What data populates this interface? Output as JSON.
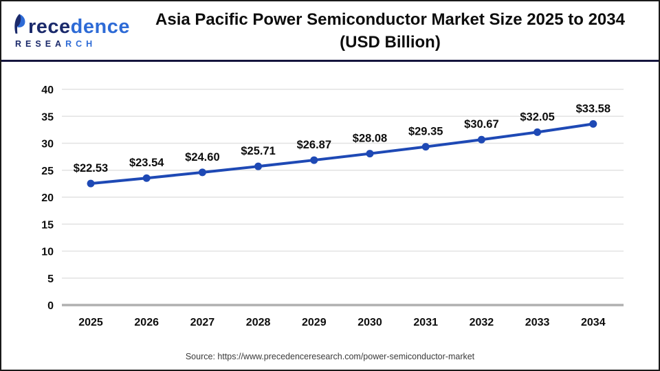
{
  "header": {
    "title_line1": "Asia Pacific Power Semiconductor Market Size 2025 to 2034",
    "title_line2": "(USD Billion)"
  },
  "logo": {
    "word_part1": "rece",
    "word_part2": "dence",
    "sub_part1": "RESEA",
    "sub_part2": "RCH",
    "navy": "#1b2a6b",
    "blue": "#2e6bd6"
  },
  "chart_data": {
    "type": "line",
    "title": "Asia Pacific Power Semiconductor Market Size 2025 to 2034 (USD Billion)",
    "categories": [
      "2025",
      "2026",
      "2027",
      "2028",
      "2029",
      "2030",
      "2031",
      "2032",
      "2033",
      "2034"
    ],
    "values": [
      22.53,
      23.54,
      24.6,
      25.71,
      26.87,
      28.08,
      29.35,
      30.67,
      32.05,
      33.58
    ],
    "value_prefix": "$",
    "value_decimals": 2,
    "yticks": [
      0,
      5,
      10,
      15,
      20,
      25,
      30,
      35,
      40
    ],
    "ylim": [
      0,
      40
    ],
    "xlabel": "",
    "ylabel": "",
    "grid": true,
    "legend": "none",
    "line_color": "#1e49b5",
    "grid_color": "#e2e2e2",
    "axis_color": "#b0b0b0",
    "label_color": "#0d0d0d"
  },
  "footer": {
    "source": "Source: https://www.precedenceresearch.com/power-semiconductor-market"
  }
}
